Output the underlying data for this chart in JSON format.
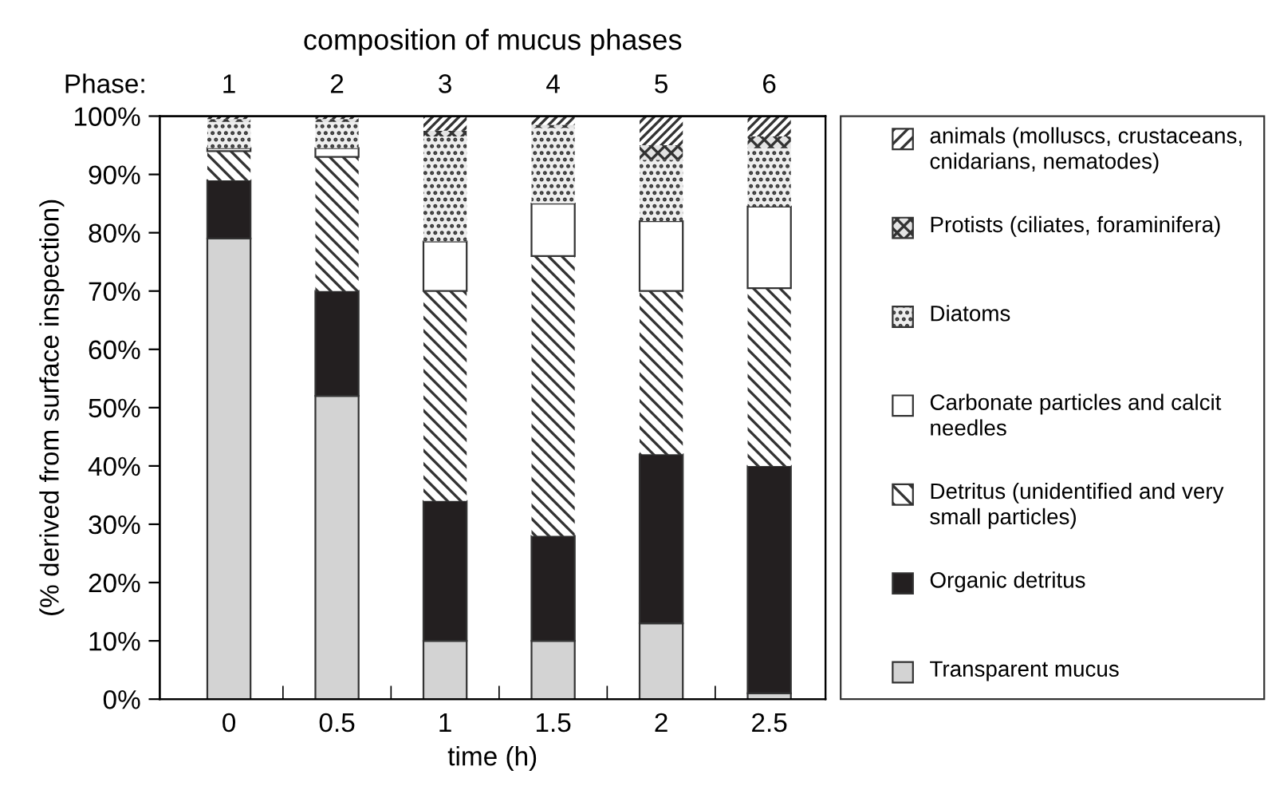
{
  "chart_data": {
    "type": "bar",
    "stacked": true,
    "title": "composition of mucus phases",
    "xlabel": "time (h)",
    "ylabel": "(% derived from surface inspection)",
    "x2label": "Phase:",
    "x": [
      0,
      0.5,
      1,
      1.5,
      2,
      2.5
    ],
    "xlim": [
      -0.32,
      2.76
    ],
    "xticks": [
      {
        "value": 0,
        "label": "0"
      },
      {
        "value": 0.25,
        "label": null
      },
      {
        "value": 0.5,
        "label": "0.5"
      },
      {
        "value": 0.75,
        "label": null
      },
      {
        "value": 1,
        "label": "1"
      },
      {
        "value": 1.25,
        "label": null
      },
      {
        "value": 1.5,
        "label": "1.5"
      },
      {
        "value": 1.75,
        "label": null
      },
      {
        "value": 2,
        "label": "2"
      },
      {
        "value": 2.25,
        "label": null
      },
      {
        "value": 2.5,
        "label": "2.5"
      }
    ],
    "x2lim": [
      0.36,
      6.52
    ],
    "x2ticks": [
      1,
      2,
      3,
      4,
      5,
      6
    ],
    "ylim": [
      0,
      100
    ],
    "yticks": [
      {
        "value": 0,
        "label": "0%"
      },
      {
        "value": 10,
        "label": "10%"
      },
      {
        "value": 20,
        "label": "20%"
      },
      {
        "value": 30,
        "label": "30%"
      },
      {
        "value": 40,
        "label": "40%"
      },
      {
        "value": 50,
        "label": "50%"
      },
      {
        "value": 60,
        "label": "60%"
      },
      {
        "value": 70,
        "label": "70%"
      },
      {
        "value": 80,
        "label": "80%"
      },
      {
        "value": 90,
        "label": "90%"
      },
      {
        "value": 100,
        "label": "100%"
      }
    ],
    "grid": false,
    "legend": "right",
    "series": [
      {
        "name": "Transparent mucus",
        "color": "#d3d3d3",
        "values": [
          79,
          52,
          10,
          10,
          13,
          1
        ]
      },
      {
        "name": "Organic detritus",
        "color": "#231f20",
        "values": [
          10,
          18,
          24,
          18,
          29,
          39
        ]
      },
      {
        "name": "Detritus (unidentified and very small particles)",
        "color": "#ffffff",
        "values": [
          5,
          23,
          36,
          48,
          28,
          30.5
        ]
      },
      {
        "name": "Carbonate particles and calcit needles",
        "color": "#ffffff",
        "values": [
          0.5,
          1.5,
          8.5,
          9,
          12,
          14
        ]
      },
      {
        "name": "Diatoms",
        "color": "#eeeeee",
        "values": [
          4.5,
          4.5,
          18,
          13,
          10.5,
          10
        ]
      },
      {
        "name": "Protists (ciliates, foraminifera)",
        "color": "#e4e4e4",
        "values": [
          0.5,
          0.5,
          1,
          0.5,
          2.5,
          2
        ]
      },
      {
        "name": "animals (molluscs, crustaceans, cnidarians, nematodes)",
        "color": "#ffffff",
        "values": [
          0.5,
          0.5,
          2.5,
          1.5,
          5,
          3.5
        ]
      }
    ]
  }
}
